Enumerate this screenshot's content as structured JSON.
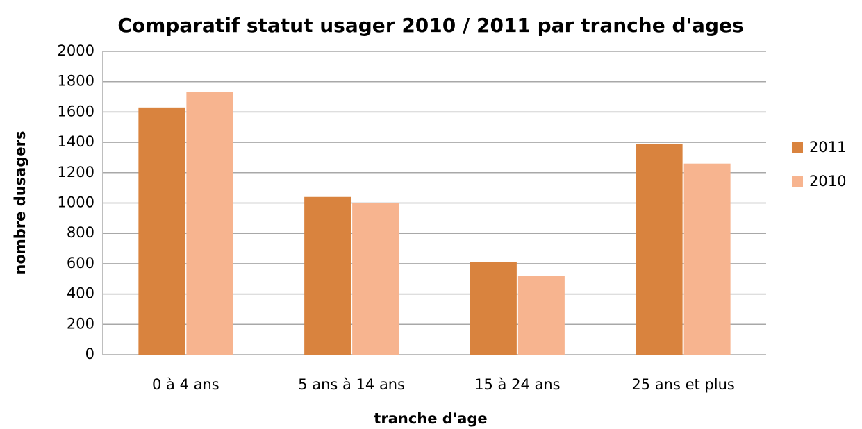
{
  "chart_data": {
    "type": "bar",
    "title": "Comparatif statut usager 2010 / 2011 par tranche d'ages",
    "x_label": "tranche d'age",
    "y_label": "nombre  dusagers",
    "categories": [
      "0 à 4 ans",
      "5 ans à 14 ans",
      "15 à 24 ans",
      "25 ans et plus"
    ],
    "series": [
      {
        "name": "2011",
        "color": "#d9833e",
        "values": [
          1630,
          1040,
          610,
          1390
        ]
      },
      {
        "name": "2010",
        "color": "#f7b48f",
        "values": [
          1730,
          1000,
          520,
          1260
        ]
      }
    ],
    "ylim": [
      0,
      2000
    ],
    "yticks": [
      0,
      200,
      400,
      600,
      800,
      1000,
      1200,
      1400,
      1600,
      1800,
      2000
    ],
    "grid": true,
    "legend": "right"
  }
}
